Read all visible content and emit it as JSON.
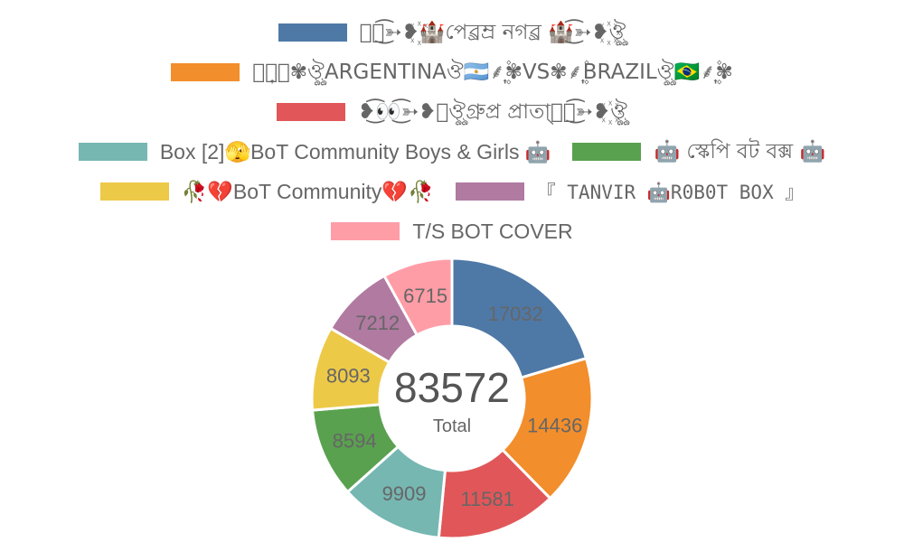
{
  "chart_data": {
    "type": "pie",
    "variant": "doughnut",
    "legend_position": "top",
    "categories": [
      "ঔৣ͜͡➳❥꙰🏰পেৱ্ৰম্ৰ নগৱ্ৰ 🏰͜͡➳❥꙰ঔৣ",
      "⸙͎۪۫✾ঔৣARGENTINAঔ🇦🇷⸙͎۪۫✾VS✾⸙͎۪۫BRAZILঔৣ🇧🇷⸙͎۪۫✾",
      "❥͜͡👀͜͡➳❥꙰ঔৣগ্ৰুপ্ৰ প্ৰাতা্ঔৣ͜͡➳❥꙰ঔৣ",
      "Box [2]🫣BoT Community Boys & Girls 🤖",
      "🤖 স্কেপি বট বক্স 🤖",
      "🥀💔BoT Community💔🥀",
      "『 TANVIR 🤖R0B0T BOX 』",
      "T/S BOT COVER"
    ],
    "values": [
      17032,
      14436,
      11581,
      9909,
      8594,
      8093,
      7212,
      6715
    ],
    "total": "83572",
    "total_label": "Total",
    "colors": [
      "#4e79a7",
      "#f28e2b",
      "#e15759",
      "#76b7b2",
      "#59a14f",
      "#edc948",
      "#b07aa1",
      "#ff9da7"
    ]
  }
}
